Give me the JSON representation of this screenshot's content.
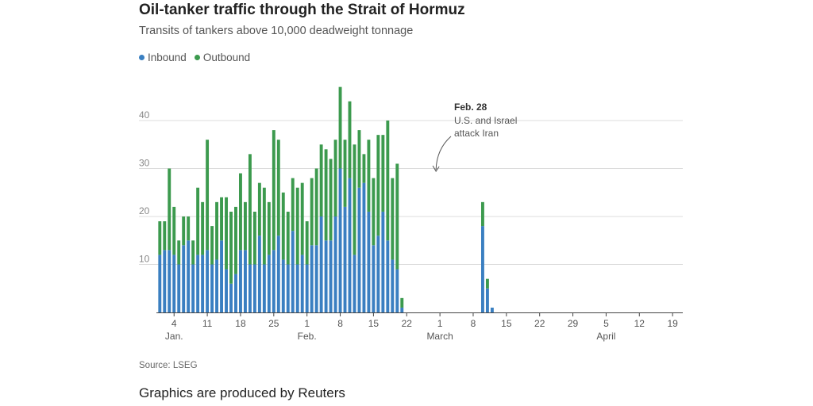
{
  "title": "Oil-tanker traffic through the Strait of Hormuz",
  "subtitle": "Transits of tankers above 10,000 deadweight tonnage",
  "legend": [
    {
      "label": "Inbound",
      "color": "#3a7fc1"
    },
    {
      "label": "Outbound",
      "color": "#3c9a4e"
    }
  ],
  "source": "Source: LSEG",
  "credit": "Graphics are produced by Reuters",
  "chart_data": {
    "type": "bar",
    "stacked": true,
    "x": [
      "2026-01-01",
      "2026-01-02",
      "2026-01-03",
      "2026-01-04",
      "2026-01-05",
      "2026-01-06",
      "2026-01-07",
      "2026-01-08",
      "2026-01-09",
      "2026-01-10",
      "2026-01-11",
      "2026-01-12",
      "2026-01-13",
      "2026-01-14",
      "2026-01-15",
      "2026-01-16",
      "2026-01-17",
      "2026-01-18",
      "2026-01-19",
      "2026-01-20",
      "2026-01-21",
      "2026-01-22",
      "2026-01-23",
      "2026-01-24",
      "2026-01-25",
      "2026-01-26",
      "2026-01-27",
      "2026-01-28",
      "2026-01-29",
      "2026-01-30",
      "2026-01-31",
      "2026-02-01",
      "2026-02-02",
      "2026-02-03",
      "2026-02-04",
      "2026-02-05",
      "2026-02-06",
      "2026-02-07",
      "2026-02-08",
      "2026-02-09",
      "2026-02-10",
      "2026-02-11",
      "2026-02-12",
      "2026-02-13",
      "2026-02-14",
      "2026-02-15",
      "2026-02-16",
      "2026-02-17",
      "2026-02-18",
      "2026-02-19",
      "2026-02-20",
      "2026-02-21",
      "2026-02-22",
      "2026-02-23",
      "2026-02-24",
      "2026-02-25",
      "2026-02-26",
      "2026-02-27",
      "2026-02-28",
      "2026-03-01",
      "2026-03-02",
      "2026-03-03",
      "2026-03-04",
      "2026-03-05",
      "2026-03-06",
      "2026-03-07",
      "2026-03-08",
      "2026-03-09",
      "2026-03-10",
      "2026-03-11",
      "2026-03-12",
      "2026-03-13",
      "2026-03-14",
      "2026-03-15",
      "2026-03-16",
      "2026-03-17",
      "2026-03-18",
      "2026-03-19",
      "2026-03-20",
      "2026-03-21",
      "2026-03-22",
      "2026-03-23",
      "2026-03-24",
      "2026-03-25",
      "2026-03-26",
      "2026-03-27",
      "2026-03-28",
      "2026-03-29",
      "2026-03-30",
      "2026-03-31",
      "2026-04-01",
      "2026-04-02",
      "2026-04-03",
      "2026-04-04",
      "2026-04-05",
      "2026-04-06",
      "2026-04-07",
      "2026-04-08",
      "2026-04-09",
      "2026-04-10",
      "2026-04-11",
      "2026-04-12",
      "2026-04-13",
      "2026-04-14",
      "2026-04-15",
      "2026-04-16",
      "2026-04-17",
      "2026-04-18",
      "2026-04-19",
      "2026-04-20",
      "2026-04-21"
    ],
    "series": [
      {
        "name": "Inbound",
        "color": "#3a7fc1",
        "values": [
          12,
          13,
          13,
          12,
          10,
          14,
          15,
          10,
          12,
          12,
          13,
          10,
          11,
          15,
          9,
          6,
          8,
          13,
          13,
          10,
          10,
          16,
          10,
          12,
          13,
          16,
          11,
          10,
          17,
          10,
          12,
          10,
          14,
          14,
          20,
          15,
          15,
          20,
          30,
          22,
          28,
          12,
          26,
          27,
          21,
          14,
          16,
          21,
          15,
          11,
          9,
          1,
          0,
          0,
          0,
          0,
          0,
          0,
          0,
          0,
          0,
          0,
          0,
          0,
          0,
          0,
          0,
          0,
          18,
          5,
          1,
          0,
          0,
          0,
          0,
          0,
          0,
          0,
          0,
          0,
          0,
          0,
          0,
          0,
          0,
          0,
          0,
          0,
          0,
          0,
          0,
          0,
          0,
          0,
          0,
          0,
          0,
          0,
          0,
          0,
          0,
          0,
          0,
          0,
          0,
          0,
          0,
          0,
          0,
          0,
          0
        ]
      },
      {
        "name": "Outbound",
        "color": "#3c9a4e",
        "values": [
          7,
          6,
          17,
          10,
          5,
          6,
          5,
          5,
          14,
          11,
          23,
          8,
          12,
          9,
          15,
          15,
          14,
          16,
          10,
          23,
          11,
          11,
          16,
          11,
          25,
          20,
          14,
          11,
          11,
          16,
          15,
          9,
          14,
          16,
          15,
          19,
          17,
          16,
          17,
          14,
          16,
          23,
          12,
          6,
          15,
          14,
          21,
          16,
          25,
          17,
          22,
          2,
          0,
          0,
          0,
          0,
          0,
          0,
          0,
          0,
          0,
          0,
          0,
          0,
          0,
          0,
          0,
          0,
          5,
          2,
          0,
          0,
          0,
          0,
          0,
          0,
          0,
          0,
          0,
          0,
          0,
          0,
          0,
          0,
          0,
          0,
          0,
          0,
          0,
          0,
          0,
          0,
          0,
          0,
          0,
          0,
          0,
          0,
          0,
          0,
          0,
          0,
          0,
          0,
          0,
          0,
          0,
          0,
          0,
          0,
          0
        ]
      }
    ],
    "yticks": [
      10,
      20,
      30,
      40
    ],
    "ylim": [
      0,
      50
    ],
    "xtick_labels": [
      {
        "date": "2026-01-04",
        "label": "4"
      },
      {
        "date": "2026-01-11",
        "label": "11"
      },
      {
        "date": "2026-01-18",
        "label": "18"
      },
      {
        "date": "2026-01-25",
        "label": "25"
      },
      {
        "date": "2026-02-01",
        "label": "1"
      },
      {
        "date": "2026-02-08",
        "label": "8"
      },
      {
        "date": "2026-02-15",
        "label": "15"
      },
      {
        "date": "2026-02-22",
        "label": "22"
      },
      {
        "date": "2026-03-01",
        "label": "1"
      },
      {
        "date": "2026-03-08",
        "label": "8"
      },
      {
        "date": "2026-03-15",
        "label": "15"
      },
      {
        "date": "2026-03-22",
        "label": "22"
      },
      {
        "date": "2026-03-29",
        "label": "29"
      },
      {
        "date": "2026-04-05",
        "label": "5"
      },
      {
        "date": "2026-04-12",
        "label": "12"
      },
      {
        "date": "2026-04-19",
        "label": "19"
      }
    ],
    "month_labels": [
      {
        "date": "2026-01-04",
        "label": "Jan."
      },
      {
        "date": "2026-02-01",
        "label": "Feb."
      },
      {
        "date": "2026-03-01",
        "label": "March"
      },
      {
        "date": "2026-04-05",
        "label": "April"
      }
    ],
    "annotation": {
      "date": "2026-02-28",
      "title": "Feb. 28",
      "lines": [
        "U.S. and Israel",
        "attack Iran"
      ]
    }
  }
}
